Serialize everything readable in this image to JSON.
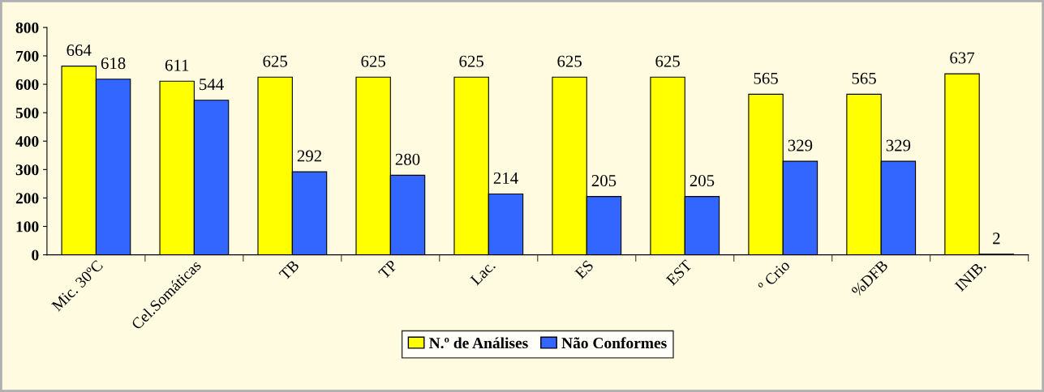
{
  "chart_data": {
    "type": "bar",
    "categories": [
      "Mic. 30ºC",
      "Cel.Somáticas",
      "TB",
      "TP",
      "Lac.",
      "ES",
      "EST",
      "º Crio",
      "%DFB",
      "INIB."
    ],
    "series": [
      {
        "name": "N.º de Análises",
        "color": "#ffff00",
        "values": [
          664,
          611,
          625,
          625,
          625,
          625,
          625,
          565,
          565,
          637
        ]
      },
      {
        "name": "Não Conformes",
        "color": "#3366ff",
        "values": [
          618,
          544,
          292,
          280,
          214,
          205,
          205,
          329,
          329,
          2
        ]
      }
    ],
    "ylim": [
      0,
      800
    ],
    "yticks": [
      0,
      100,
      200,
      300,
      400,
      500,
      600,
      700,
      800
    ],
    "grid": false,
    "legend": "bottom",
    "data_labels": true
  }
}
